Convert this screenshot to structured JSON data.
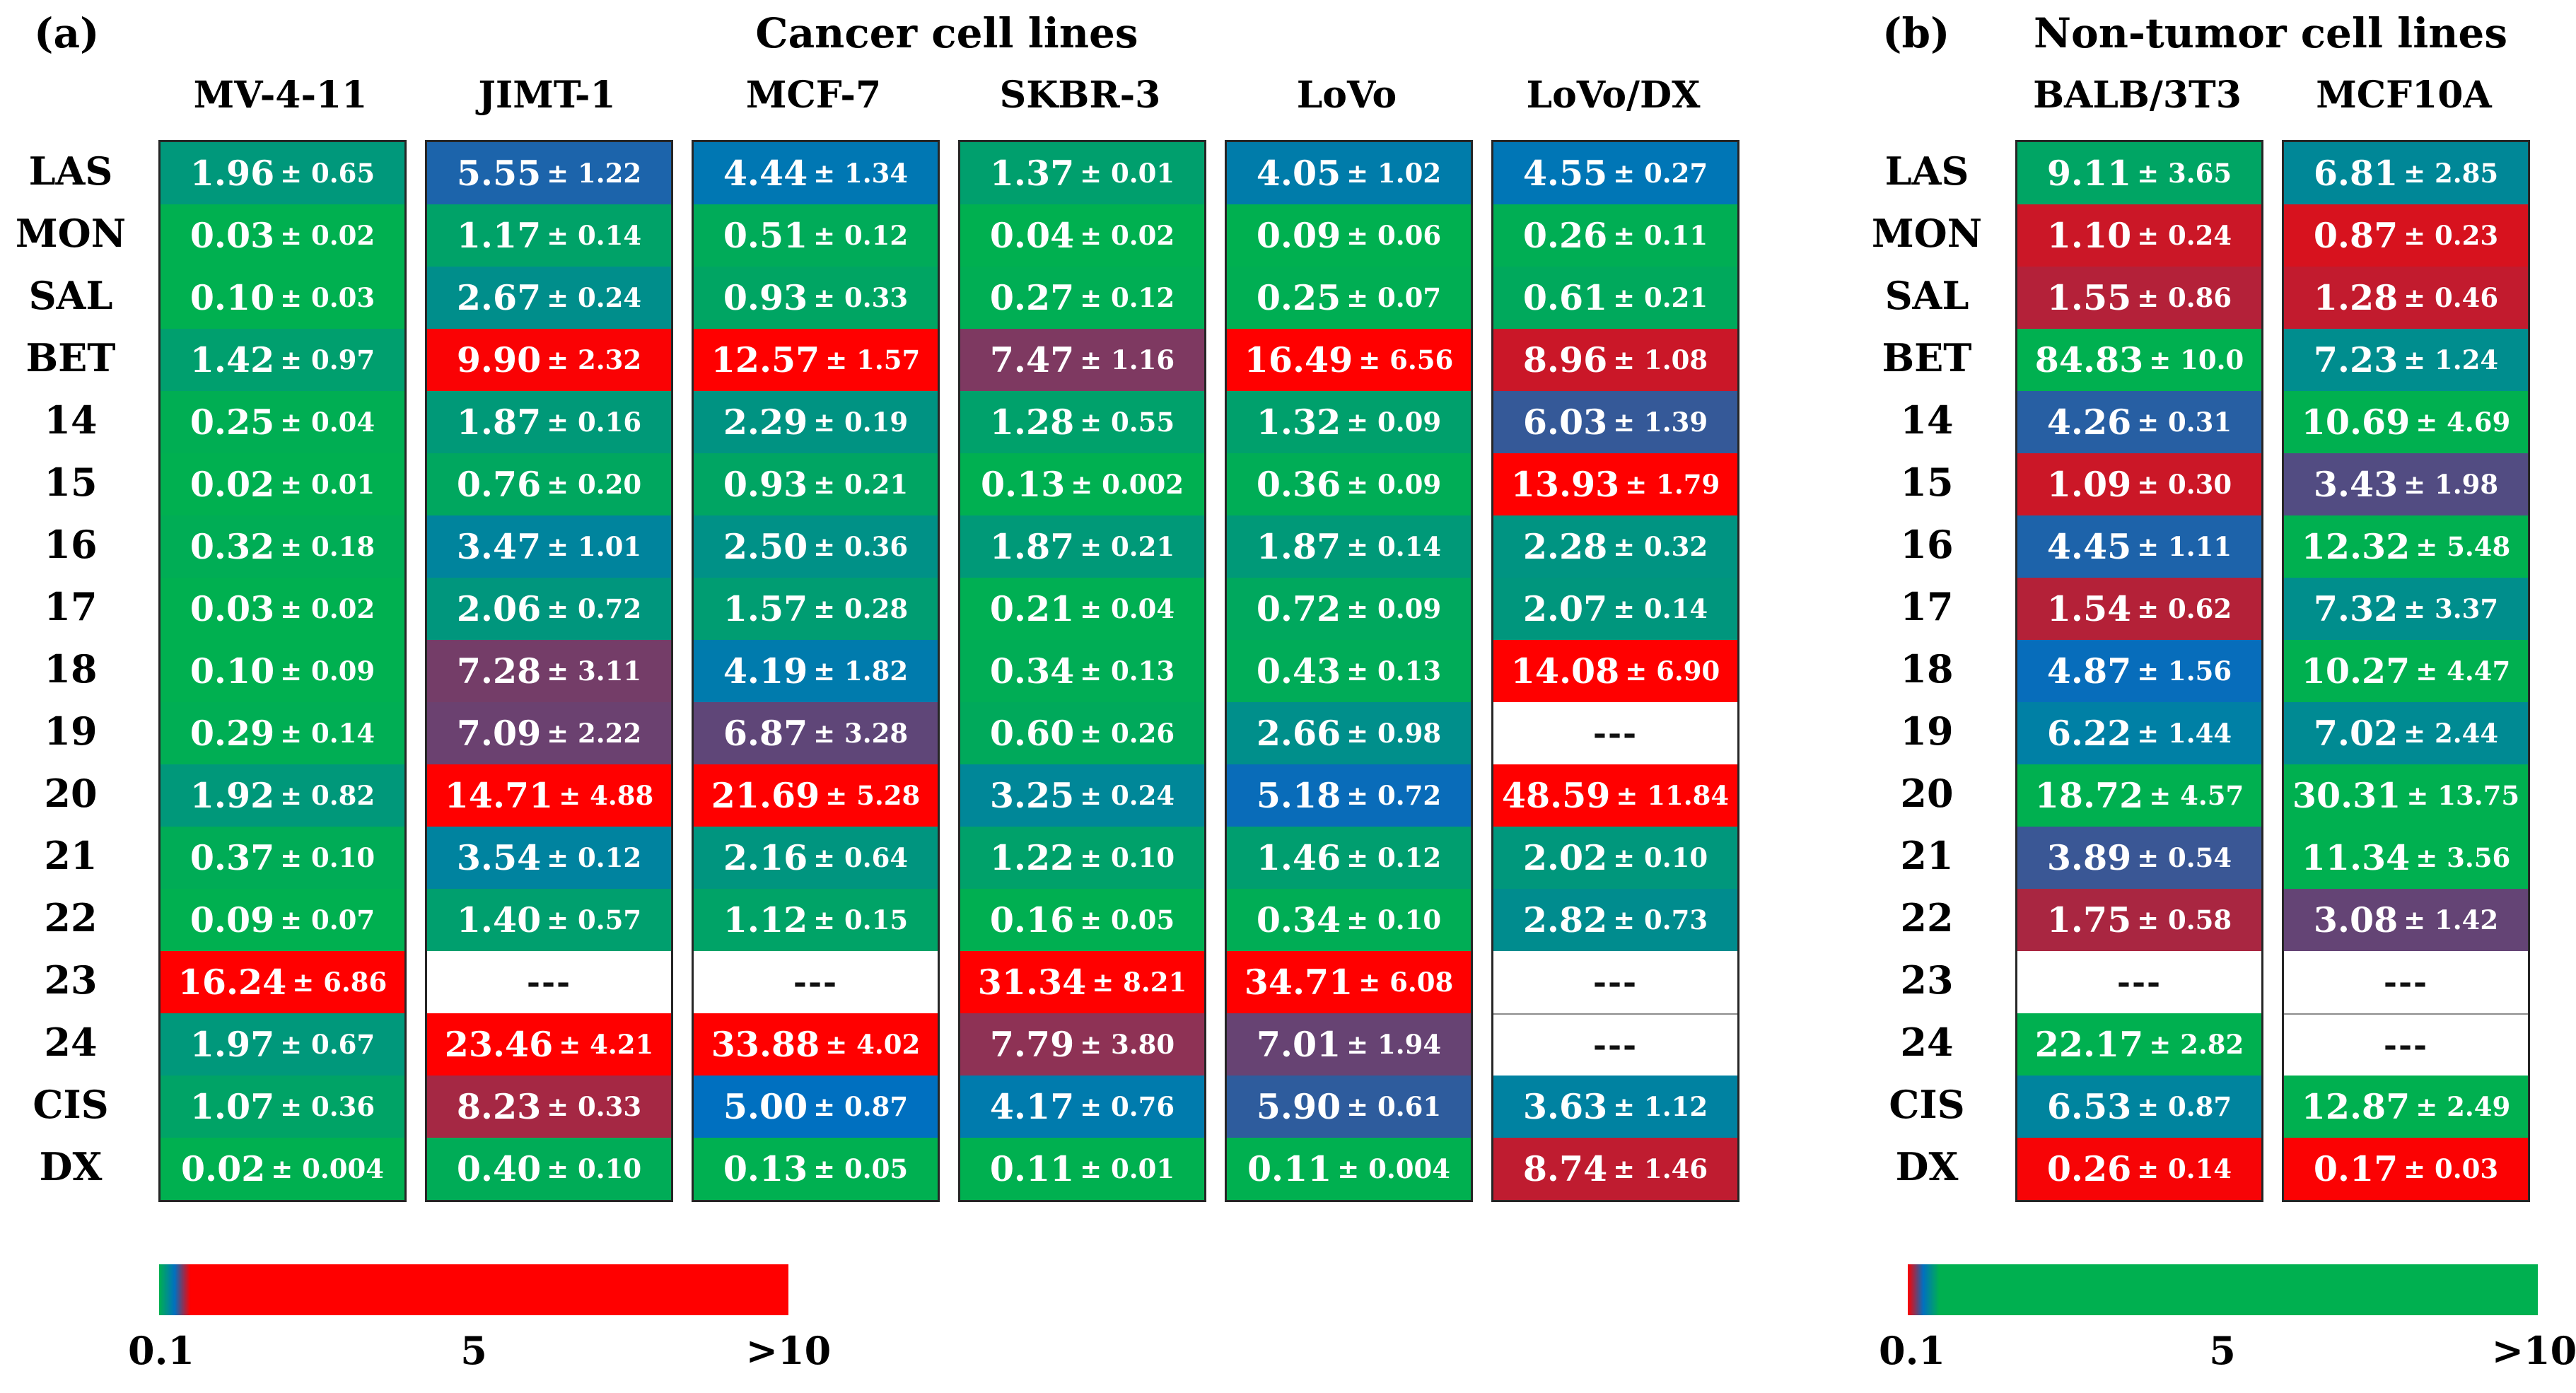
{
  "colors": {
    "scale_low": "#00B050",
    "scale_mid": "#0070C0",
    "scale_high": "#FF0000",
    "cell_text": "#FFFFFF",
    "na_text": "#111111",
    "column_border": "#262626",
    "na_divider": "#8C8C8C"
  },
  "scale": {
    "min": 0.1,
    "mid": 5,
    "max": 10
  },
  "chart_data": [
    {
      "type": "heatmap",
      "tag": "(a)",
      "title": "Cancer cell lines",
      "color_order": "green-blue-red",
      "columns": [
        "MV-4-11",
        "JIMT-1",
        "MCF-7",
        "SKBR-3",
        "LoVo",
        "LoVo/DX"
      ],
      "rows": [
        "LAS",
        "MON",
        "SAL",
        "BET",
        "14",
        "15",
        "16",
        "17",
        "18",
        "19",
        "20",
        "21",
        "22",
        "23",
        "24",
        "CIS",
        "DX"
      ],
      "cells": [
        [
          "1.96 ± 0.65",
          "5.55 ± 1.22",
          "4.44 ± 1.34",
          "1.37 ± 0.01",
          "4.05 ± 1.02",
          "4.55 ± 0.27"
        ],
        [
          "0.03 ± 0.02",
          "1.17 ± 0.14",
          "0.51 ± 0.12",
          "0.04 ± 0.02",
          "0.09 ± 0.06",
          "0.26 ± 0.11"
        ],
        [
          "0.10 ± 0.03",
          "2.67 ± 0.24",
          "0.93 ± 0.33",
          "0.27 ± 0.12",
          "0.25 ± 0.07",
          "0.61 ± 0.21"
        ],
        [
          "1.42 ± 0.97",
          "9.90 ± 2.32",
          "12.57 ± 1.57",
          "7.47 ± 1.16",
          "16.49 ± 6.56",
          "8.96 ± 1.08"
        ],
        [
          "0.25 ± 0.04",
          "1.87 ± 0.16",
          "2.29 ± 0.19",
          "1.28 ± 0.55",
          "1.32 ± 0.09",
          "6.03 ± 1.39"
        ],
        [
          "0.02 ± 0.01",
          "0.76 ± 0.20",
          "0.93 ± 0.21",
          "0.13 ± 0.002",
          "0.36 ± 0.09",
          "13.93 ± 1.79"
        ],
        [
          "0.32 ± 0.18",
          "3.47 ± 1.01",
          "2.50 ± 0.36",
          "1.87 ± 0.21",
          "1.87 ± 0.14",
          "2.28 ± 0.32"
        ],
        [
          "0.03 ± 0.02",
          "2.06 ± 0.72",
          "1.57 ± 0.28",
          "0.21 ± 0.04",
          "0.72 ± 0.09",
          "2.07 ± 0.14"
        ],
        [
          "0.10 ± 0.09",
          "7.28 ± 3.11",
          "4.19 ± 1.82",
          "0.34 ± 0.13",
          "0.43 ± 0.13",
          "14.08 ± 6.90"
        ],
        [
          "0.29 ± 0.14",
          "7.09 ± 2.22",
          "6.87 ± 3.28",
          "0.60 ± 0.26",
          "2.66 ± 0.98",
          "---"
        ],
        [
          "1.92 ± 0.82",
          "14.71 ± 4.88",
          "21.69 ± 5.28",
          "3.25 ± 0.24",
          "5.18 ± 0.72",
          "48.59 ± 11.84"
        ],
        [
          "0.37 ± 0.10",
          "3.54 ± 0.12",
          "2.16 ± 0.64",
          "1.22 ± 0.10",
          "1.46 ± 0.12",
          "2.02 ± 0.10"
        ],
        [
          "0.09 ± 0.07",
          "1.40 ± 0.57",
          "1.12 ± 0.15",
          "0.16 ± 0.05",
          "0.34 ± 0.10",
          "2.82 ± 0.73"
        ],
        [
          "16.24 ± 6.86",
          "---",
          "---",
          "31.34 ± 8.21",
          "34.71 ± 6.08",
          "---"
        ],
        [
          "1.97 ± 0.67",
          "23.46 ± 4.21",
          "33.88 ± 4.02",
          "7.79 ± 3.80",
          "7.01 ± 1.94",
          "---"
        ],
        [
          "1.07 ± 0.36",
          "8.23 ± 0.33",
          "5.00 ± 0.87",
          "4.17 ± 0.76",
          "5.90 ± 0.61",
          "3.63 ± 1.12"
        ],
        [
          "0.02 ± 0.004",
          "0.40 ± 0.10",
          "0.13 ± 0.05",
          "0.11 ± 0.01",
          "0.11 ± 0.004",
          "8.74 ± 1.46"
        ]
      ],
      "colorbar_labels": [
        "0.1",
        "5",
        ">10"
      ]
    },
    {
      "type": "heatmap",
      "tag": "(b)",
      "title": "Non-tumor cell lines",
      "color_order": "red-blue-green",
      "columns": [
        "BALB/3T3",
        "MCF10A"
      ],
      "rows": [
        "LAS",
        "MON",
        "SAL",
        "BET",
        "14",
        "15",
        "16",
        "17",
        "18",
        "19",
        "20",
        "21",
        "22",
        "23",
        "24",
        "CIS",
        "DX"
      ],
      "cells": [
        [
          "9.11 ± 3.65",
          "6.81 ± 2.85"
        ],
        [
          "1.10 ± 0.24",
          "0.87 ± 0.23"
        ],
        [
          "1.55 ± 0.86",
          "1.28 ± 0.46"
        ],
        [
          "84.83 ± 10.0",
          "7.23 ± 1.24"
        ],
        [
          "4.26 ± 0.31",
          "10.69 ± 4.69"
        ],
        [
          "1.09 ± 0.30",
          "3.43 ± 1.98"
        ],
        [
          "4.45 ± 1.11",
          "12.32 ± 5.48"
        ],
        [
          "1.54 ± 0.62",
          "7.32 ± 3.37"
        ],
        [
          "4.87 ± 1.56",
          "10.27 ± 4.47"
        ],
        [
          "6.22 ± 1.44",
          "7.02 ± 2.44"
        ],
        [
          "18.72 ± 4.57",
          "30.31 ± 13.75"
        ],
        [
          "3.89 ± 0.54",
          "11.34 ± 3.56"
        ],
        [
          "1.75 ± 0.58",
          "3.08 ± 1.42"
        ],
        [
          "---",
          "---"
        ],
        [
          "22.17 ± 2.82",
          "---"
        ],
        [
          "6.53 ± 0.87",
          "12.87 ± 2.49"
        ],
        [
          "0.26 ± 0.14",
          "0.17 ± 0.03"
        ]
      ],
      "colorbar_labels": [
        "0.1",
        "5",
        ">10"
      ]
    }
  ]
}
